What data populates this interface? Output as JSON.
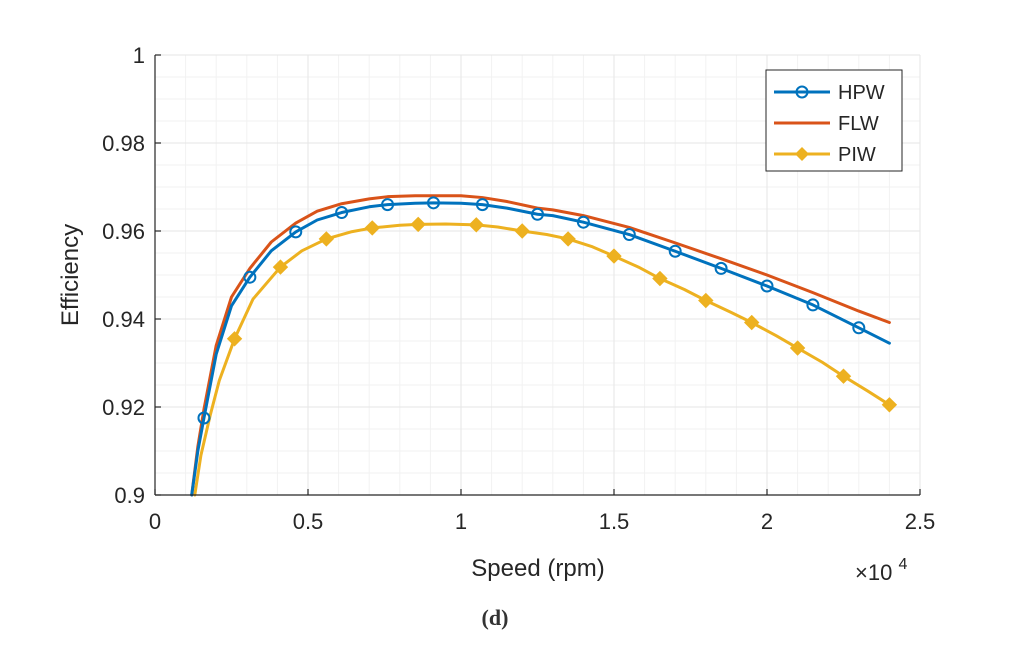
{
  "chart_data": {
    "type": "line",
    "xlabel": "Speed (rpm)",
    "ylabel": "Efficiency",
    "x_exponent_base": "×10",
    "x_exponent_power": "4",
    "caption": "(d)",
    "xlim": [
      0,
      2.5
    ],
    "ylim": [
      0.9,
      1.0
    ],
    "x_ticks": [
      0,
      0.5,
      1,
      1.5,
      2,
      2.5
    ],
    "x_tick_labels": [
      "0",
      "0.5",
      "1",
      "1.5",
      "2",
      "2.5"
    ],
    "y_ticks": [
      0.9,
      0.92,
      0.94,
      0.96,
      0.98,
      1.0
    ],
    "y_tick_labels": [
      "0.9",
      "0.92",
      "0.94",
      "0.96",
      "0.98",
      "1"
    ],
    "grid": true,
    "legend_position": "top-right",
    "series": [
      {
        "name": "HPW",
        "color": "#0072BD",
        "marker": "circle",
        "x": [
          0.12,
          0.14,
          0.16,
          0.2,
          0.25,
          0.31,
          0.38,
          0.46,
          0.53,
          0.61,
          0.7,
          0.76,
          0.85,
          0.91,
          1.0,
          1.07,
          1.15,
          1.25,
          1.3,
          1.4,
          1.55,
          1.7,
          1.85,
          2.0,
          2.15,
          2.3,
          2.4
        ],
        "y": [
          0.9,
          0.91,
          0.9175,
          0.932,
          0.943,
          0.9495,
          0.9555,
          0.9598,
          0.9625,
          0.9642,
          0.9655,
          0.966,
          0.9663,
          0.9664,
          0.9663,
          0.966,
          0.9652,
          0.9638,
          0.9635,
          0.962,
          0.9592,
          0.9554,
          0.9515,
          0.9475,
          0.9432,
          0.938,
          0.9345
        ]
      },
      {
        "name": "FLW",
        "color": "#D95319",
        "marker": "none",
        "x": [
          0.12,
          0.14,
          0.16,
          0.2,
          0.25,
          0.31,
          0.38,
          0.46,
          0.53,
          0.61,
          0.7,
          0.76,
          0.85,
          0.91,
          1.0,
          1.07,
          1.15,
          1.25,
          1.3,
          1.4,
          1.55,
          1.7,
          1.85,
          2.0,
          2.15,
          2.3,
          2.4
        ],
        "y": [
          0.9,
          0.911,
          0.9195,
          0.934,
          0.945,
          0.9515,
          0.9575,
          0.9618,
          0.9645,
          0.9662,
          0.9673,
          0.9678,
          0.968,
          0.968,
          0.968,
          0.9676,
          0.9667,
          0.9652,
          0.9648,
          0.9635,
          0.9608,
          0.9573,
          0.9537,
          0.95,
          0.946,
          0.9418,
          0.9392
        ]
      },
      {
        "name": "PIW",
        "color": "#EDB120",
        "marker": "diamond",
        "x": [
          0.13,
          0.15,
          0.18,
          0.21,
          0.26,
          0.32,
          0.41,
          0.48,
          0.56,
          0.64,
          0.71,
          0.8,
          0.86,
          0.95,
          1.05,
          1.12,
          1.2,
          1.28,
          1.35,
          1.43,
          1.5,
          1.58,
          1.65,
          1.73,
          1.8,
          1.88,
          1.95,
          2.03,
          2.1,
          2.18,
          2.25,
          2.33,
          2.4
        ],
        "y": [
          0.9,
          0.909,
          0.918,
          0.926,
          0.9355,
          0.9445,
          0.9518,
          0.9555,
          0.9582,
          0.9598,
          0.9607,
          0.9613,
          0.9615,
          0.9616,
          0.9614,
          0.9609,
          0.96,
          0.9592,
          0.9582,
          0.9564,
          0.9543,
          0.9518,
          0.9492,
          0.9467,
          0.9442,
          0.9416,
          0.9392,
          0.9362,
          0.9334,
          0.9302,
          0.927,
          0.9236,
          0.9205
        ]
      }
    ],
    "marker_points": {
      "HPW": {
        "x": [
          0.16,
          0.31,
          0.46,
          0.61,
          0.76,
          0.91,
          1.07,
          1.25,
          1.4,
          1.55,
          1.7,
          1.85,
          2.0,
          2.15,
          2.3
        ],
        "y": [
          0.9175,
          0.9495,
          0.9598,
          0.9642,
          0.966,
          0.9664,
          0.966,
          0.9638,
          0.962,
          0.9592,
          0.9554,
          0.9515,
          0.9475,
          0.9432,
          0.938
        ]
      },
      "PIW": {
        "x": [
          0.26,
          0.41,
          0.56,
          0.71,
          0.86,
          1.05,
          1.2,
          1.35,
          1.5,
          1.65,
          1.8,
          1.95,
          2.1,
          2.25,
          2.4
        ],
        "y": [
          0.9355,
          0.9518,
          0.9582,
          0.9607,
          0.9615,
          0.9614,
          0.96,
          0.9582,
          0.9543,
          0.9492,
          0.9442,
          0.9392,
          0.9334,
          0.927,
          0.9205
        ]
      }
    }
  }
}
